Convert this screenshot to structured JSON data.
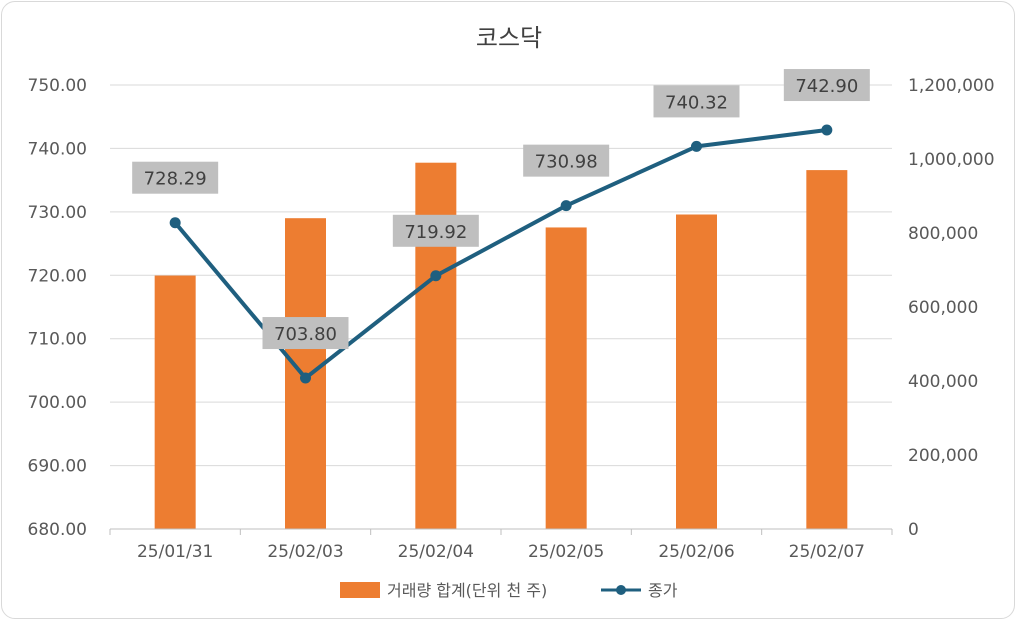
{
  "chart_data": {
    "type": "bar+line",
    "title": "코스닥",
    "categories": [
      "25/01/31",
      "25/02/03",
      "25/02/04",
      "25/02/05",
      "25/02/06",
      "25/02/07"
    ],
    "series": [
      {
        "name": "거래량 합계(단위 천 주)",
        "type": "bar",
        "axis": "right",
        "color": "#ED7D31",
        "values": [
          685000,
          840000,
          990000,
          815000,
          850000,
          970000
        ]
      },
      {
        "name": "종가",
        "type": "line",
        "axis": "left",
        "color": "#1F5F7F",
        "values": [
          728.29,
          703.8,
          719.92,
          730.98,
          740.32,
          742.9
        ],
        "labels": [
          "728.29",
          "703.80",
          "719.92",
          "730.98",
          "740.32",
          "742.90"
        ]
      }
    ],
    "y_left": {
      "min": 680,
      "max": 750,
      "ticks": [
        "680.00",
        "690.00",
        "700.00",
        "710.00",
        "720.00",
        "730.00",
        "740.00",
        "750.00"
      ]
    },
    "y_right": {
      "min": 0,
      "max": 1200000,
      "ticks": [
        "0",
        "200,000",
        "400,000",
        "600,000",
        "800,000",
        "1,000,000",
        "1,200,000"
      ]
    },
    "grid": true,
    "legend": "bottom",
    "label_bg": "#BFBFBF"
  }
}
